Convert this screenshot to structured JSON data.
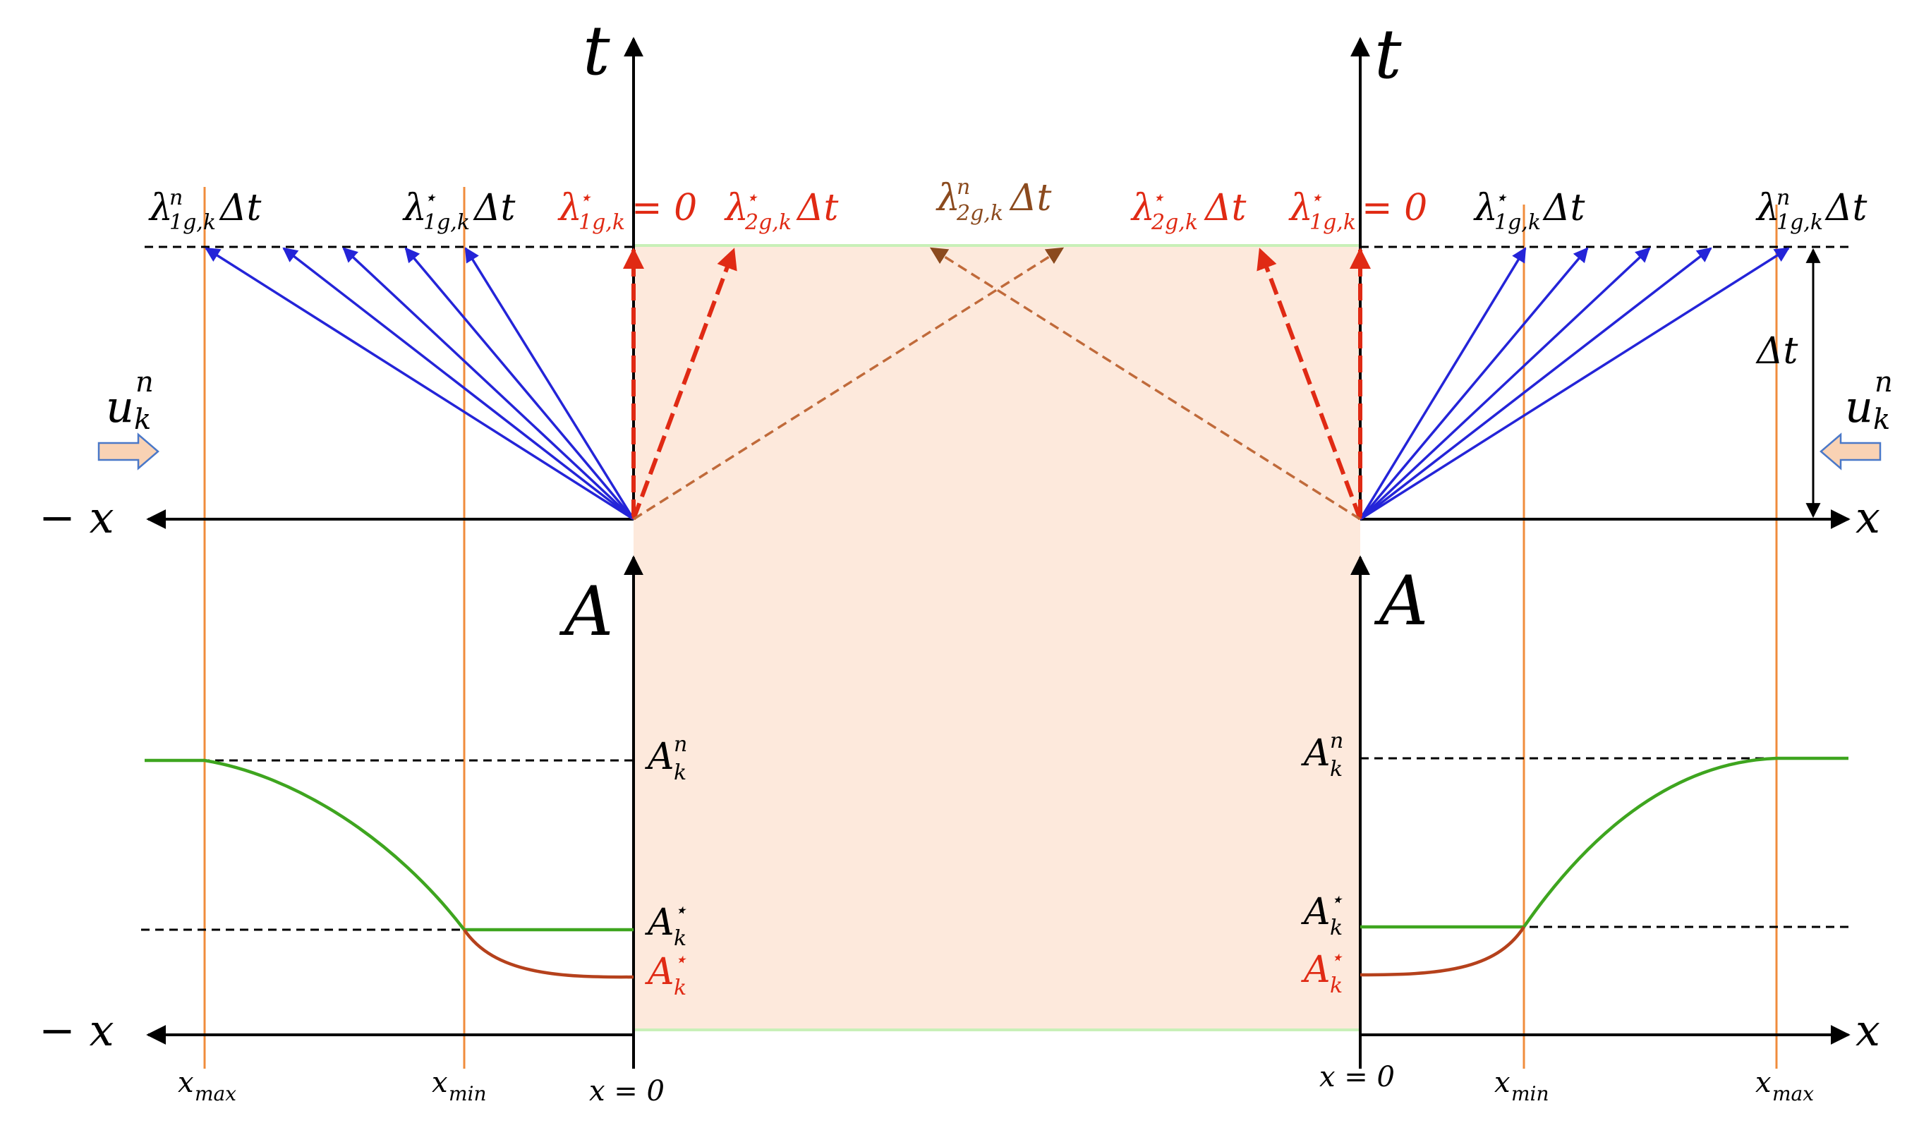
{
  "colors": {
    "background": "#ffffff",
    "region_fill": "#fde9dc",
    "region_border": "#c8f0b8",
    "axis": "#000000",
    "blue_characteristic": "#2424d8",
    "red_characteristic": "#e02a14",
    "brown_characteristic": "#c06a3a",
    "dark_brown": "#8b4a1e",
    "green_profile": "#3ea51f",
    "red_profile": "#b5411c",
    "orange_lines": "#f08c3c",
    "dashed_black": "#000000",
    "arrow_icon_fill": "#f9d2b4",
    "arrow_icon_stroke": "#4a78c8"
  },
  "diagram": {
    "left": {
      "t_axis_label": "t",
      "x_axis_label": "− x",
      "x_axis_label_bottom": "− x",
      "A_axis_label": "A",
      "origin_label": "x = 0",
      "velocity_label": "u",
      "velocity_sup": "n",
      "velocity_sub": "k",
      "velocity_icon": "right-arrow-icon",
      "top_labels": {
        "lambda1n": {
          "base": "λ",
          "sub": "1g,k",
          "sup": "n",
          "suffix": "Δt"
        },
        "lambda1star": {
          "base": "λ",
          "sub": "1g,k",
          "sup": "⋆",
          "suffix": "Δt"
        },
        "lambda1star_zero": {
          "base": "λ",
          "sub": "1g,k",
          "sup": "⋆",
          "suffix": "= 0"
        },
        "lambda2star": {
          "base": "λ",
          "sub": "2g,k",
          "sup": "⋆",
          "suffix": "Δt"
        }
      },
      "profile_labels": {
        "An": {
          "base": "A",
          "sup": "n",
          "sub": "k"
        },
        "Astar_black": {
          "base": "A",
          "sup": "⋆",
          "sub": "k"
        },
        "Astar_red": {
          "base": "A",
          "sup": "⋆",
          "sub": "k"
        }
      },
      "x_labels": {
        "xmax": {
          "base": "x",
          "sub": "max"
        },
        "xmin": {
          "base": "x",
          "sub": "min"
        }
      }
    },
    "center": {
      "lambda2n": {
        "base": "λ",
        "sub": "2g,k",
        "sup": "n",
        "suffix": "Δt"
      }
    },
    "right": {
      "t_axis_label": "t",
      "x_axis_label": "x",
      "x_axis_label_bottom": "x",
      "A_axis_label": "A",
      "origin_label": "x = 0",
      "delta_t_label": "Δt",
      "velocity_label": "u",
      "velocity_sup": "n",
      "velocity_sub": "k",
      "velocity_icon": "left-arrow-icon",
      "top_labels": {
        "lambda2star": {
          "base": "λ",
          "sub": "2g,k",
          "sup": "⋆",
          "suffix": "Δt"
        },
        "lambda1star_zero": {
          "base": "λ",
          "sub": "1g,k",
          "sup": "⋆",
          "suffix": "= 0"
        },
        "lambda1star": {
          "base": "λ",
          "sub": "1g,k",
          "sup": "⋆",
          "suffix": "Δt"
        },
        "lambda1n": {
          "base": "λ",
          "sub": "1g,k",
          "sup": "n",
          "suffix": "Δt"
        }
      },
      "profile_labels": {
        "An": {
          "base": "A",
          "sup": "n",
          "sub": "k"
        },
        "Astar_black": {
          "base": "A",
          "sup": "⋆",
          "sub": "k"
        },
        "Astar_red": {
          "base": "A",
          "sup": "⋆",
          "sub": "k"
        }
      },
      "x_labels": {
        "xmin": {
          "base": "x",
          "sub": "min"
        },
        "xmax": {
          "base": "x",
          "sub": "max"
        }
      }
    }
  }
}
